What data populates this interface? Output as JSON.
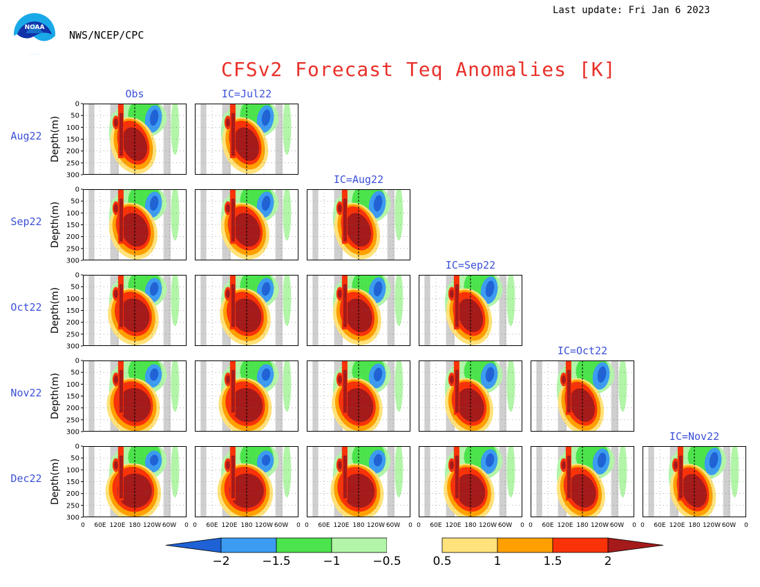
{
  "header": {
    "last_update": "Last update: Fri Jan 6 2023",
    "agency": "NWS/NCEP/CPC",
    "logo_text": "NOAA"
  },
  "chart_data": {
    "type": "heatmap",
    "title": "CFSv2 Forecast Teq Anomalies [K]",
    "ylabel": "Depth(m)",
    "y_ticks": [
      0,
      50,
      100,
      150,
      200,
      250,
      300
    ],
    "ylim": [
      300,
      0
    ],
    "x_ticks": [
      "0",
      "60E",
      "120E",
      "180",
      "120W",
      "60W",
      "0"
    ],
    "xlim": [
      0,
      360
    ],
    "columns": [
      "Obs",
      "IC=Jul22",
      "IC=Aug22",
      "IC=Sep22",
      "IC=Oct22",
      "IC=Nov22"
    ],
    "rows": [
      "Aug22",
      "Sep22",
      "Oct22",
      "Nov22",
      "Dec22"
    ],
    "panels_per_row": [
      2,
      3,
      4,
      5,
      6
    ],
    "colorbar": {
      "levels": [
        "−2",
        "−1.5",
        "−1",
        "−0.5",
        "0.5",
        "1",
        "1.5",
        "2"
      ],
      "colors": [
        "#1f62d6",
        "#3c9cf2",
        "#4ce44c",
        "#b2f5a8",
        "#ffffff",
        "#ffe27a",
        "#ffa000",
        "#f93208",
        "#a51a1a"
      ]
    },
    "land_masks_lon": [
      [
        20,
        40
      ],
      [
        95,
        125
      ],
      [
        280,
        305
      ]
    ],
    "dashed_line_lon": 180,
    "features": {
      "warm_core_lon": [
        135,
        215
      ],
      "warm_core_depth": [
        80,
        250
      ],
      "cool_anomaly_lon": [
        230,
        260
      ],
      "cool_anomaly_depth": [
        20,
        110
      ],
      "colors_shown": {
        "warm_core": "#a51a1a",
        "cool": "#1f62d6"
      }
    }
  }
}
